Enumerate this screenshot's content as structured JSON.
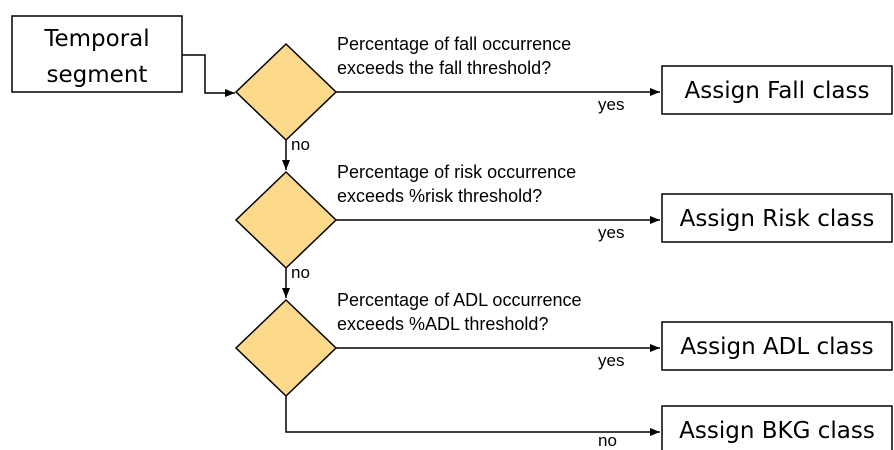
{
  "start": {
    "lines": [
      "Temporal",
      "segment"
    ]
  },
  "decisions": [
    {
      "lines": [
        "Percentage of fall occurrence",
        "exceeds the fall threshold?"
      ]
    },
    {
      "lines": [
        "Percentage of risk occurrence",
        "exceeds %risk threshold?"
      ]
    },
    {
      "lines": [
        "Percentage of ADL occurrence",
        "exceeds %ADL threshold?"
      ]
    }
  ],
  "outcomes": [
    "Assign Fall class",
    "Assign Risk class",
    "Assign ADL class",
    "Assign BKG class"
  ],
  "edge_labels": {
    "yes": [
      "yes",
      "yes",
      "yes"
    ],
    "no": [
      "no",
      "no",
      "no"
    ]
  }
}
